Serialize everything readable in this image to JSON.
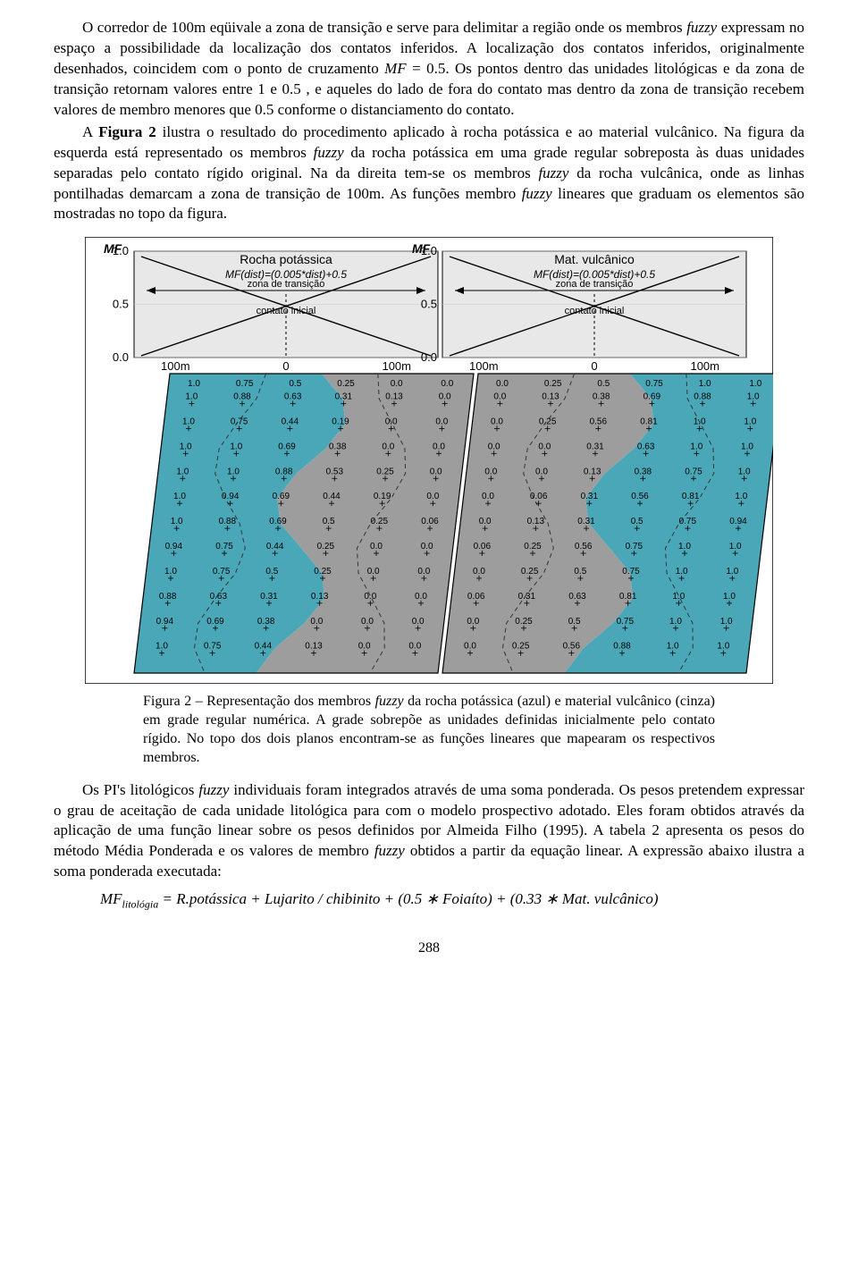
{
  "para1_a": "O corredor de 100m eqüivale a zona de transição e serve para delimitar a região onde os membros ",
  "para1_b": " expressam no espaço a possibilidade da localização dos contatos inferidos. A localização dos contatos inferidos, originalmente desenhados, coincidem com o ponto de cruzamento ",
  "para1_c": " = 0.5. Os pontos dentro das unidades litológicas e da zona de transição retornam valores entre 1 e 0.5 , e aqueles do lado de fora do contato mas dentro da zona de transição recebem valores de membro menores que 0.5 conforme o distanciamento do contato.",
  "fuzzy": "fuzzy",
  "mf_it": "MF",
  "para2_a": "A ",
  "para2_fig": "Figura 2",
  "para2_b": " ilustra o resultado do procedimento aplicado à rocha potássica e  ao material vulcânico. Na figura da esquerda está representado os membros ",
  "para2_c": " da rocha potássica em uma grade regular sobreposta às duas unidades separadas pelo contato rígido original. Na da direita tem-se os membros ",
  "para2_d": " da rocha vulcânica, onde as linhas pontilhadas demarcam a zona de transição de 100m. As funções membro ",
  "para2_e": " lineares que graduam os elementos são mostradas no topo da figura.",
  "caption_a": "Figura 2 – Representação dos membros ",
  "caption_b": " da rocha potássica (azul) e material vulcânico (cinza) em grade regular numérica. A grade sobrepõe as unidades definidas inicialmente pelo contato rígido. No topo dos dois planos encontram-se as funções lineares que mapearam os respectivos membros.",
  "para3_a": "Os PI's litológicos ",
  "para3_b": " individuais foram integrados através de uma soma ponderada. Os pesos pretendem expressar o grau de aceitação de cada unidade litológica para com o modelo prospectivo adotado. Eles foram obtidos através da aplicação de uma função linear sobre os pesos definidos por Almeida Filho (1995).  A tabela 2 apresenta os pesos do método Média Ponderada e os valores de membro ",
  "para3_c": " obtidos a partir da equação linear. A expressão abaixo ilustra a soma ponderada executada:",
  "eq_lhs": "MF",
  "eq_sub": "litológia",
  "eq_rhs": " = R.potássica + Lujarito / chibinito + (0.5 ∗ Foiaíto) + (0.33 ∗ Mat. vulcânico)",
  "page_number": "288",
  "figure": {
    "border_color": "#000000",
    "bg_chart": "#ffffff",
    "bg_grid_top": "#e8e8e8",
    "color_left_region": "#4aa7b8",
    "color_right_region": "#9d9d9d",
    "text_color": "#000000",
    "dash_color": "#333333",
    "font_title": 14,
    "font_axis": 13,
    "font_small": 11,
    "font_cell": 10,
    "left": {
      "mf_label": "MF",
      "title": "Rocha potássica",
      "formula": "MF(dist)=(0.005*dist)+0.5",
      "trans_label": "zona de transição",
      "contact_label": "contato inicial",
      "y_ticks": [
        "1.0",
        "0.5",
        "0.0"
      ],
      "x_ticks": [
        "100m",
        "0",
        "100m"
      ],
      "top_vals": [
        "1.0",
        "0.75",
        "0.5",
        "0.25",
        "0.0",
        "0.0"
      ],
      "rows": [
        [
          "1.0",
          "0.88",
          "0.63",
          "0.31",
          "0.13",
          "0.0"
        ],
        [
          "1.0",
          "0.75",
          "0.44",
          "0.19",
          "0.0",
          "0.0"
        ],
        [
          "1.0",
          "1.0",
          "0.69",
          "0.38",
          "0.0",
          "0.0"
        ],
        [
          "1.0",
          "1.0",
          "0.88",
          "0.53",
          "0.25",
          "0.0"
        ],
        [
          "1.0",
          "0.94",
          "0.69",
          "0.44",
          "0.19",
          "0.0"
        ],
        [
          "1.0",
          "0.88",
          "0.69",
          "0.5",
          "0.25",
          "0.06"
        ],
        [
          "0.94",
          "0.75",
          "0.44",
          "0.25",
          "0.0",
          "0.0"
        ],
        [
          "1.0",
          "0.75",
          "0.5",
          "0.25",
          "0.0",
          "0.0"
        ],
        [
          "0.88",
          "0.63",
          "0.31",
          "0.13",
          "0.0",
          "0.0"
        ],
        [
          "0.94",
          "0.69",
          "0.38",
          "0.0",
          "0.0",
          "0.0"
        ],
        [
          "1.0",
          "0.75",
          "0.44",
          "0.13",
          "0.0",
          "0.0"
        ]
      ]
    },
    "right": {
      "mf_label": "MF",
      "title": "Mat. vulcânico",
      "formula": "MF(dist)=(0.005*dist)+0.5",
      "trans_label": "zona de transição",
      "contact_label": "contato inicial",
      "y_ticks": [
        "1.0",
        "0.5",
        "0.0"
      ],
      "x_ticks": [
        "100m",
        "0",
        "100m"
      ],
      "top_vals": [
        "0.0",
        "0.25",
        "0.5",
        "0.75",
        "1.0",
        "1.0"
      ],
      "rows": [
        [
          "0.0",
          "0.13",
          "0.38",
          "0.69",
          "0.88",
          "1.0"
        ],
        [
          "0.0",
          "0.25",
          "0.56",
          "0.81",
          "1.0",
          "1.0"
        ],
        [
          "0.0",
          "0.0",
          "0.31",
          "0.63",
          "1.0",
          "1.0"
        ],
        [
          "0.0",
          "0.0",
          "0.13",
          "0.38",
          "0.75",
          "1.0"
        ],
        [
          "0.0",
          "0.06",
          "0.31",
          "0.56",
          "0.81",
          "1.0"
        ],
        [
          "0.0",
          "0.13",
          "0.31",
          "0.5",
          "0.75",
          "0.94"
        ],
        [
          "0.06",
          "0.25",
          "0.56",
          "0.75",
          "1.0",
          "1.0"
        ],
        [
          "0.0",
          "0.25",
          "0.5",
          "0.75",
          "1.0",
          "1.0"
        ],
        [
          "0.06",
          "0.31",
          "0.63",
          "0.81",
          "1.0",
          "1.0"
        ],
        [
          "0.0",
          "0.25",
          "0.5",
          "0.75",
          "1.0",
          "1.0"
        ],
        [
          "0.0",
          "0.25",
          "0.56",
          "0.88",
          "1.0",
          "1.0"
        ]
      ]
    }
  }
}
